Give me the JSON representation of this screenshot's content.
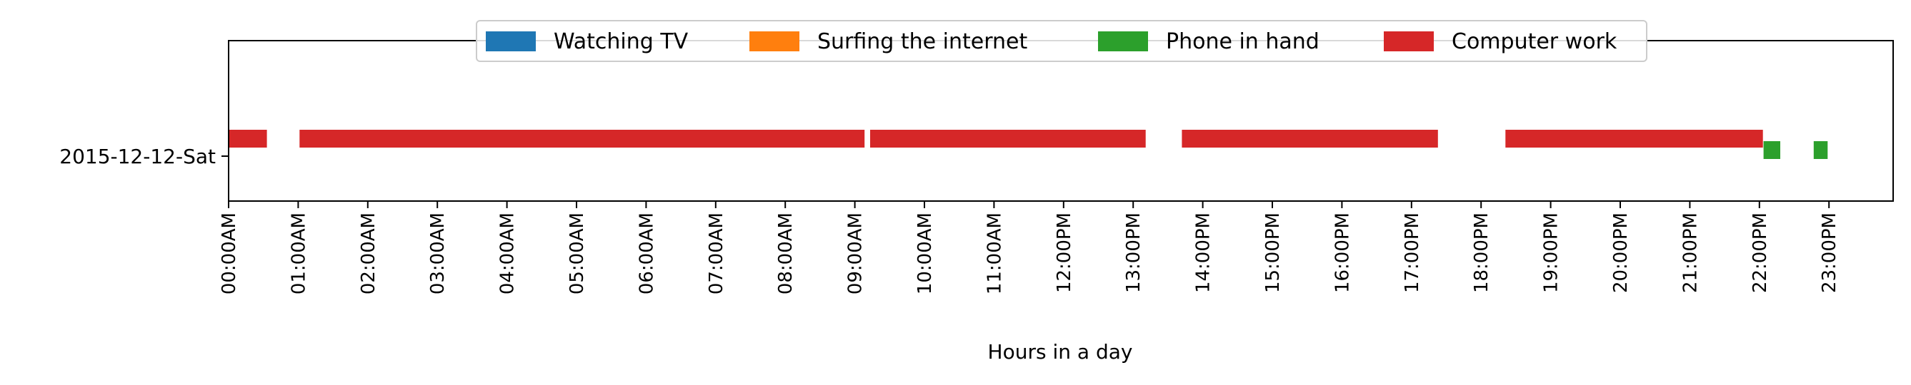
{
  "chart_data": {
    "type": "timeline",
    "xlabel": "Hours in a day",
    "ylabel": "",
    "x_unit": "hour of day",
    "xlim": [
      0,
      24
    ],
    "grid": false,
    "legend_placement": "top-center",
    "legend": [
      {
        "label": "Watching TV",
        "color": "#1f77b4"
      },
      {
        "label": "Surfing the internet",
        "color": "#ff7f0e"
      },
      {
        "label": "Phone in hand",
        "color": "#2ca02c"
      },
      {
        "label": "Computer work",
        "color": "#d62728"
      }
    ],
    "rows": [
      "2015-12-12-Sat"
    ],
    "x_ticks": [
      {
        "hour": 0,
        "label": "00:00AM"
      },
      {
        "hour": 1,
        "label": "01:00AM"
      },
      {
        "hour": 2,
        "label": "02:00AM"
      },
      {
        "hour": 3,
        "label": "03:00AM"
      },
      {
        "hour": 4,
        "label": "04:00AM"
      },
      {
        "hour": 5,
        "label": "05:00AM"
      },
      {
        "hour": 6,
        "label": "06:00AM"
      },
      {
        "hour": 7,
        "label": "07:00AM"
      },
      {
        "hour": 8,
        "label": "08:00AM"
      },
      {
        "hour": 9,
        "label": "09:00AM"
      },
      {
        "hour": 10,
        "label": "10:00AM"
      },
      {
        "hour": 11,
        "label": "11:00AM"
      },
      {
        "hour": 12,
        "label": "12:00PM"
      },
      {
        "hour": 13,
        "label": "13:00PM"
      },
      {
        "hour": 14,
        "label": "14:00PM"
      },
      {
        "hour": 15,
        "label": "15:00PM"
      },
      {
        "hour": 16,
        "label": "16:00PM"
      },
      {
        "hour": 17,
        "label": "17:00PM"
      },
      {
        "hour": 18,
        "label": "18:00PM"
      },
      {
        "hour": 19,
        "label": "19:00PM"
      },
      {
        "hour": 20,
        "label": "20:00PM"
      },
      {
        "hour": 21,
        "label": "21:00PM"
      },
      {
        "hour": 22,
        "label": "22:00PM"
      },
      {
        "hour": 23,
        "label": "23:00PM"
      }
    ],
    "series": [
      {
        "name": "Computer work",
        "row": "2015-12-12-Sat",
        "color": "#d62728",
        "intervals": [
          [
            0.0,
            0.55
          ],
          [
            1.02,
            9.14
          ],
          [
            9.22,
            13.18
          ],
          [
            13.7,
            17.38
          ],
          [
            18.35,
            22.05
          ]
        ]
      },
      {
        "name": "Phone in hand",
        "row": "2015-12-12-Sat",
        "color": "#2ca02c",
        "intervals": [
          [
            22.06,
            22.3
          ],
          [
            22.78,
            22.98
          ]
        ]
      }
    ]
  }
}
